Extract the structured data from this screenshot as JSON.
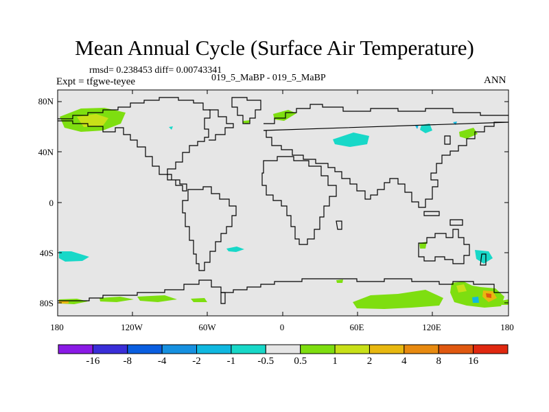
{
  "title": "Mean Annual Cycle (Surface Air Temperature)",
  "stats": "rmsd= 0.238453 diff= 0.00743341",
  "experiment": "Expt = tfgwe-teyee",
  "case_label": "019_5_MaBP - 019_5_MaBP",
  "season": "ANN",
  "lat_ticks": [
    "80N",
    "40N",
    "0",
    "40S",
    "80S"
  ],
  "lon_ticks": [
    "180",
    "120W",
    "60W",
    "0",
    "60E",
    "120E",
    "180"
  ],
  "colorbar": {
    "labels": [
      "-16",
      "-8",
      "-4",
      "-2",
      "-1",
      "-0.5",
      "0.5",
      "1",
      "2",
      "4",
      "8",
      "16"
    ],
    "colors": [
      "#8a1ae6",
      "#3a2ed8",
      "#0a5ee0",
      "#1690e0",
      "#10b8e0",
      "#18d8c8",
      "#e6e6e6",
      "#7ede10",
      "#c8e018",
      "#e8b810",
      "#e88a10",
      "#e05810",
      "#e02810"
    ]
  },
  "colors": {
    "background": "#e6e6e6",
    "coast": "#000000"
  }
}
